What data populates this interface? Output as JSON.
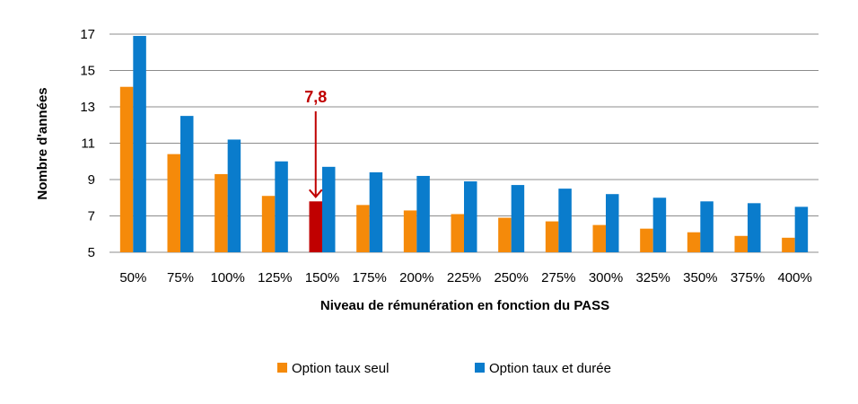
{
  "chart_data": {
    "type": "bar",
    "title": "",
    "xlabel": "Niveau de rémunération en fonction du PASS",
    "ylabel": "Nombre d'années",
    "ylim": [
      5,
      17
    ],
    "yticks": [
      5,
      7,
      9,
      11,
      13,
      15,
      17
    ],
    "grid": true,
    "legend_position": "bottom",
    "categories": [
      "50%",
      "75%",
      "100%",
      "125%",
      "150%",
      "175%",
      "200%",
      "225%",
      "250%",
      "275%",
      "300%",
      "325%",
      "350%",
      "375%",
      "400%"
    ],
    "series": [
      {
        "name": "Option taux seul",
        "color": "#f58a0a",
        "values": [
          14.1,
          10.4,
          9.3,
          8.1,
          7.8,
          7.6,
          7.3,
          7.1,
          6.9,
          6.7,
          6.5,
          6.3,
          6.1,
          5.9,
          5.8
        ]
      },
      {
        "name": "Option taux et durée",
        "color": "#0a7ccc",
        "values": [
          16.9,
          12.5,
          11.2,
          10.0,
          9.7,
          9.4,
          9.2,
          8.9,
          8.7,
          8.5,
          8.2,
          8.0,
          7.8,
          7.7,
          7.5
        ]
      }
    ],
    "highlight": {
      "series": 0,
      "index": 4,
      "color": "#c00000"
    },
    "annotations": [
      {
        "text": "7,8",
        "category": "150%",
        "color": "#c00000"
      }
    ]
  }
}
